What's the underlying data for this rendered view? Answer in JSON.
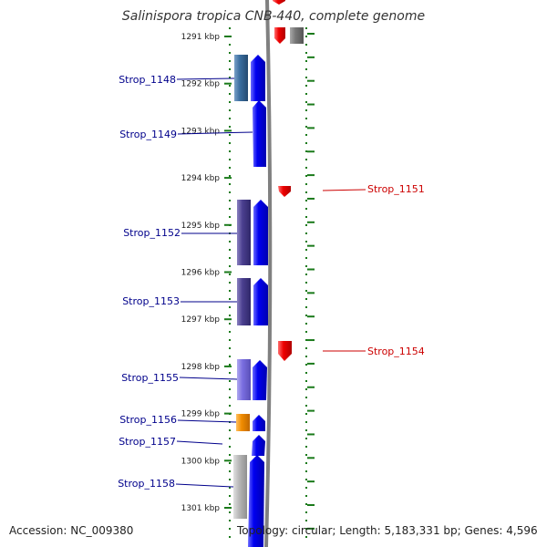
{
  "title": "Salinispora tropica CNB-440, complete genome",
  "accession": "Accession: NC_009380",
  "topology": "Topology: circular; Length: 5,183,331 bp; Genes: 4,596",
  "ruler": {
    "labels": [
      "1291 kbp",
      "1292 kbp",
      "1293 kbp",
      "1294 kbp",
      "1295 kbp",
      "1296 kbp",
      "1297 kbp",
      "1298 kbp",
      "1299 kbp",
      "1300 kbp",
      "1301 kbp"
    ]
  },
  "left_labels": [
    {
      "text": "Strop_1148"
    },
    {
      "text": "Strop_1149"
    },
    {
      "text": "Strop_1152"
    },
    {
      "text": "Strop_1153"
    },
    {
      "text": "Strop_1155"
    },
    {
      "text": "Strop_1156"
    },
    {
      "text": "Strop_1157"
    },
    {
      "text": "Strop_1158"
    }
  ],
  "right_labels": [
    {
      "text": "Strop_1151"
    },
    {
      "text": "Strop_1154"
    }
  ],
  "colors": {
    "forward_gene": "#0000ee",
    "reverse_gene": "#ee0000",
    "left_label": "#00008b",
    "right_label": "#cc0000",
    "ruler_tick": "#1a7a1a",
    "backbone": "#808080"
  }
}
